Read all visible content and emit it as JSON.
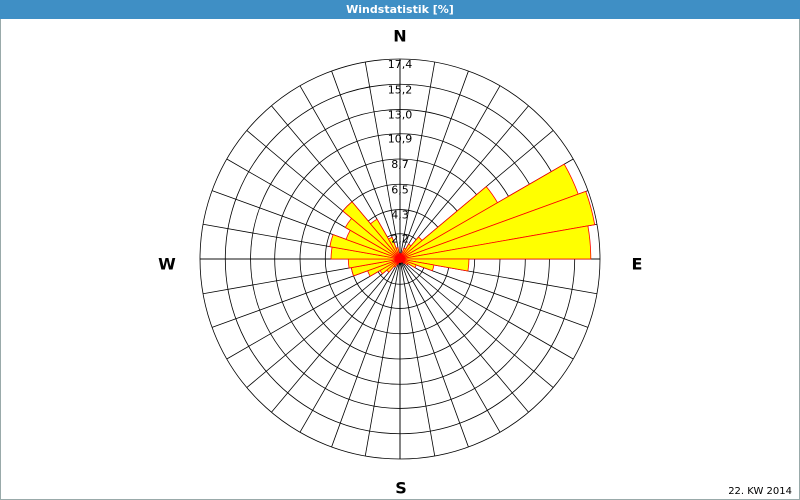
{
  "chart_data": {
    "type": "windrose",
    "title": "Windstatistik [%]",
    "x": [
      0,
      10,
      20,
      30,
      40,
      50,
      60,
      70,
      80,
      90,
      100,
      110,
      120,
      130,
      140,
      150,
      160,
      170,
      180,
      190,
      200,
      210,
      220,
      230,
      240,
      250,
      260,
      270,
      280,
      290,
      300,
      310,
      320,
      330,
      340,
      350
    ],
    "values": [
      0.3,
      0.5,
      1.0,
      1.5,
      2.5,
      9.8,
      16.5,
      17.2,
      16.6,
      6.0,
      3.0,
      1.5,
      0.8,
      0.5,
      0.3,
      0.3,
      0.3,
      0.3,
      0.3,
      0.3,
      0.5,
      0.8,
      1.5,
      2.0,
      3.0,
      4.3,
      4.5,
      6.0,
      6.2,
      5.0,
      5.5,
      6.5,
      4.0,
      2.0,
      1.0,
      0.5
    ],
    "color": "#ffff00",
    "edge_color": "#ff0000",
    "rlim": [
      0,
      17.4
    ],
    "rticks": [
      {
        "value": 2.2,
        "label": "2,2"
      },
      {
        "value": 4.3,
        "label": "4,3"
      },
      {
        "value": 6.5,
        "label": "6,5"
      },
      {
        "value": 8.7,
        "label": "8,7"
      },
      {
        "value": 10.9,
        "label": "10,9"
      },
      {
        "value": 13.0,
        "label": "13,0"
      },
      {
        "value": 15.2,
        "label": "15,2"
      },
      {
        "value": 17.4,
        "label": "17,4"
      }
    ],
    "compass": {
      "N": "N",
      "E": "E",
      "S": "S",
      "W": "W"
    },
    "footer": "22. KW 2014"
  }
}
